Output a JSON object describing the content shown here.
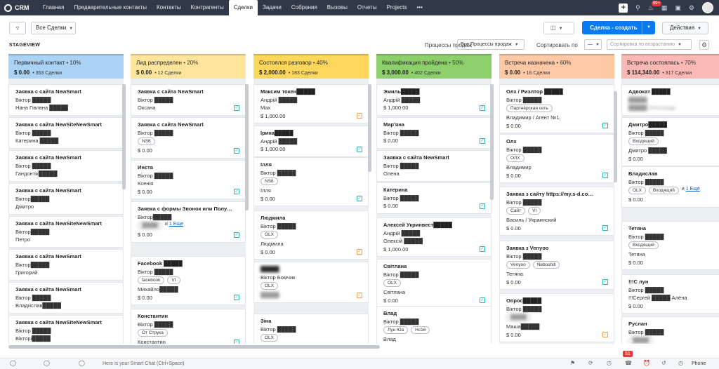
{
  "app": {
    "name": "CRM"
  },
  "nav": [
    "Главная",
    "Предварительные контакты",
    "Контакты",
    "Контрагенты",
    "Сделки",
    "Задачи",
    "Собрания",
    "Вызовы",
    "Отчеты",
    "Projects",
    "•••"
  ],
  "notifications_badge": "99+",
  "toolbar": {
    "view": "Все Сделки",
    "create": "Сделка - создать",
    "actions": "Действия"
  },
  "subbar": {
    "stageview": "STAGEVIEW",
    "processes_label": "Процессы продаж",
    "processes_value": "Все Процессы продаж",
    "sort_label": "Сортировать по",
    "sort_value": "—",
    "sort_order": "Сортировка по возрастанию"
  },
  "columns": [
    {
      "name": "Первичный контакт",
      "pct": "• 10%",
      "sum": "$ 0.00",
      "count": "• 353 Сделки",
      "color": "#a9d2f5",
      "cards": [
        {
          "title": "Заявка с сайта NewSmart",
          "l2": "Віктор █████",
          "l3": "Нана Гівлвна █████"
        },
        {
          "title": "Заявка с сайта NewSiteNewSmart",
          "l2": "Віктор █████",
          "l3": "Катерина █████"
        },
        {
          "title": "Заявка с сайта NewSmart",
          "l2": "Віктор █████",
          "l3": "Гандонтік█████"
        },
        {
          "title": "Заявка с сайта NewSmart",
          "l2": "Віктор█████",
          "l3": "Дмитро"
        },
        {
          "title": "Заявка с сайта NewSiteNewSmart",
          "l2": "Віктор█████",
          "l3": "Петро"
        },
        {
          "title": "Заявка с сайта NewSmart",
          "l2": "Віктор█████",
          "l3": "Григорий"
        },
        {
          "title": "Заявка с сайта NewSmart",
          "l2": "Віктор █████",
          "l3": "Владислав█████"
        },
        {
          "title": "Заявка с сайта NewSiteNewSmart",
          "l2": "Віктор █████",
          "l3": "Вікторі█████"
        }
      ]
    },
    {
      "name": "Лид распределен",
      "pct": "• 20%",
      "sum": "$ 0.00",
      "count": "• 12 Сделки",
      "color": "#ffe49b",
      "cards": [
        {
          "title": "Заявка с сайта NewSmart",
          "l2": "Віктор █████",
          "l3": "Оксана"
        },
        {
          "title": "Заявка с сайта NewSmart",
          "l2": "Віктор █████",
          "tags": [
            "NS6"
          ],
          "amount": "$ 0.00"
        },
        {
          "title": "Инста",
          "l2": "Віктор █████",
          "l3": "Ксенія",
          "amount": "$ 0.00"
        },
        {
          "title": "Заявка с формы Звонок или Полу…",
          "l2": "Віктор█████",
          "tags": [
            "█████"
          ],
          "more": "1 Еще",
          "amount": "$ 0.00"
        },
        {
          "title": "Facebook █████",
          "l2": "Віктор █████",
          "tags": [
            "facebook",
            "VI"
          ],
          "l3": "Михайло█████",
          "amount": "$ 0.00"
        },
        {
          "title": "Константин",
          "l2": "Віктор █████",
          "tags": [
            "От Струка"
          ],
          "l3": "Константин"
        }
      ]
    },
    {
      "name": "Состоялся разговор",
      "pct": "• 40%",
      "sum": "$ 2,000.00",
      "count": "• 183 Сделки",
      "color": "#fcd75c",
      "cards": [
        {
          "title": "Максим токен█████",
          "l2": "Андрій █████",
          "l3": "Max",
          "amount": "$ 1,000.00"
        },
        {
          "title": "Ірина█████",
          "l2": "Андрій █████",
          "amount": "$ 1,000.00"
        },
        {
          "title": "Ілля",
          "l2": "Віктор █████",
          "tags": [
            "NS6"
          ],
          "l3": "Ілля",
          "amount": "$ 0.00"
        },
        {
          "title": "Людмила",
          "l2": "Віктор █████",
          "tags": [
            "OLX"
          ],
          "l3": "Людмила",
          "amount": "$ 0.00"
        },
        {
          "title": "█████",
          "l2": "Віктор Бомчик",
          "tags": [
            "OLX"
          ],
          "amount": "█████"
        },
        {
          "title": "Зіна",
          "l2": "Віктор █████",
          "tags": [
            "OLX"
          ]
        }
      ]
    },
    {
      "name": "Квалификация пройдена",
      "pct": "• 50%",
      "sum": "$ 3,000.00",
      "count": "• 402 Сделки",
      "color": "#8dd06b",
      "cards": [
        {
          "title": "Эмиль█████",
          "l2": "Андрій █████",
          "amount": "$ 1,000.00"
        },
        {
          "title": "Мар'яна",
          "l2": "Віктор █████",
          "amount": "$ 0.00"
        },
        {
          "title": "Заявка с сайта NewSmart",
          "l2": "Віктор █████",
          "l3": "Олена"
        },
        {
          "title": "Катерина",
          "l2": "Віктор █████",
          "amount": "$ 0.00"
        },
        {
          "title": "Алексей Укринвест█████",
          "l2": "Андрій █████",
          "l3": "Олексій █████",
          "amount": "$ 1,000.00"
        },
        {
          "title": "Світлана",
          "l2": "Віктор █████",
          "tags": [
            "OLX"
          ],
          "l3": "Світлана",
          "amount": "$ 0.00"
        },
        {
          "title": "Влад",
          "l2": "Віктор █████",
          "tags": [
            "Лун Юа",
            "Нс16"
          ],
          "l3": "Влад"
        }
      ]
    },
    {
      "name": "Встреча назначена",
      "pct": "• 60%",
      "sum": "$ 0.00",
      "count": "• 16 Сделки",
      "color": "#ffc9a6",
      "cards": [
        {
          "title": "Олх / Риэлтор █████",
          "l2": "Віктор █████",
          "tags": [
            "Партнёрская сеть"
          ],
          "l3": "Владимир / Агент №1.",
          "amount": "$ 0.00"
        },
        {
          "title": "Олх",
          "l2": "Віктор █████",
          "tags": [
            "ОЛХ"
          ],
          "l3": "Владимир",
          "amount": "$ 0.00"
        },
        {
          "title": "Заявка з сайту https://my.s-d.co…",
          "l2": "Віктор █████",
          "tags": [
            "Сайт",
            "VI"
          ],
          "l3": "Василь / Украинский",
          "amount": "$ 0.00"
        },
        {
          "title": "Заявка з Venyoo",
          "l2": "Віктор █████",
          "tags": [
            "Venyoo",
            "Neboshill"
          ],
          "l3": "Тетяна",
          "amount": "$ 0.00"
        },
        {
          "title": "Опрос█████",
          "l2": "Віктор █████",
          "tags": [
            "█████"
          ],
          "l3": "Маша█████",
          "amount": "$ 0.00"
        }
      ]
    },
    {
      "name": "Встреча состоялась",
      "pct": "• 70%",
      "sum": "$ 114,340.00",
      "count": "• 317 Сделки",
      "color": "#fcb8b4",
      "cards": [
        {
          "title": "Адвокат █████",
          "l2": "█████",
          "l3": "█████ Олександр"
        },
        {
          "title": "Дмитро█████",
          "l2": "Віктор █████",
          "tags": [
            "Входящий"
          ],
          "l3": "Дмитро █████",
          "amount": "$ 0.00"
        },
        {
          "title": "Владислав",
          "l2": "Віктор █████",
          "tags": [
            "OLX",
            "Входящий"
          ],
          "more": "1 Еще",
          "amount": "$ 0.00"
        },
        {
          "title": "Тетяна",
          "l2": "Віктор █████",
          "tags": [
            "Входящий"
          ],
          "l3": "Тетяна",
          "amount": "$ 0.00"
        },
        {
          "title": "!!!С лун",
          "l2": "Віктор █████",
          "l3": "!!!Сергей █████ Алёна",
          "amount": "$ 0.00"
        },
        {
          "title": "Руслан",
          "l2": "Віктор █████",
          "tags": [
            "█████"
          ],
          "amount": "$ 0.00"
        }
      ]
    }
  ],
  "bottombar": {
    "chat_placeholder": "Here is your Smart Chat (Ctrl+Space)",
    "phone": "Phone",
    "badge": "51"
  }
}
